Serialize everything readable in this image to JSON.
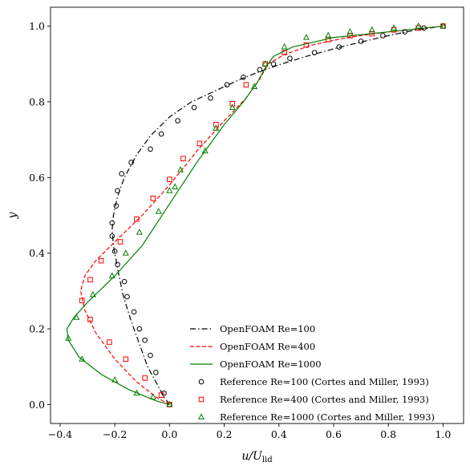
{
  "chart_data": {
    "type": "line",
    "title": "",
    "xlabel": {
      "main": "u/U",
      "sub": "lid"
    },
    "ylabel": "y",
    "xlim": [
      -0.435,
      1.075
    ],
    "ylim": [
      -0.05,
      1.05
    ],
    "xticks": [
      -0.4,
      -0.2,
      0.0,
      0.2,
      0.4,
      0.6,
      0.8,
      1.0
    ],
    "xtick_labels": [
      "−0.4",
      "−0.2",
      "0.0",
      "0.2",
      "0.4",
      "0.6",
      "0.8",
      "1.0"
    ],
    "yticks": [
      0.0,
      0.2,
      0.4,
      0.6,
      0.8,
      1.0
    ],
    "ytick_labels": [
      "0.0",
      "0.2",
      "0.4",
      "0.6",
      "0.8",
      "1.0"
    ],
    "grid": false,
    "legend_position": "lower-right",
    "series": [
      {
        "name": "OpenFOAM Re=100",
        "kind": "line",
        "color": "#000000",
        "dash": "7 3 1.5 3",
        "points": [
          [
            0,
            0
          ],
          [
            -0.02,
            0.02
          ],
          [
            -0.05,
            0.06
          ],
          [
            -0.08,
            0.1
          ],
          [
            -0.11,
            0.16
          ],
          [
            -0.14,
            0.22
          ],
          [
            -0.17,
            0.29
          ],
          [
            -0.19,
            0.36
          ],
          [
            -0.205,
            0.42
          ],
          [
            -0.21,
            0.46
          ],
          [
            -0.205,
            0.5
          ],
          [
            -0.19,
            0.55
          ],
          [
            -0.165,
            0.6
          ],
          [
            -0.12,
            0.66
          ],
          [
            -0.07,
            0.71
          ],
          [
            0,
            0.76
          ],
          [
            0.08,
            0.8
          ],
          [
            0.17,
            0.83
          ],
          [
            0.26,
            0.86
          ],
          [
            0.33,
            0.88
          ],
          [
            0.4,
            0.898
          ],
          [
            0.5,
            0.92
          ],
          [
            0.6,
            0.94
          ],
          [
            0.7,
            0.958
          ],
          [
            0.8,
            0.975
          ],
          [
            0.9,
            0.99
          ],
          [
            1.0,
            1.0
          ]
        ]
      },
      {
        "name": "OpenFOAM Re=400",
        "kind": "line",
        "color": "#ff0000",
        "dash": "5 2.5",
        "points": [
          [
            0,
            0
          ],
          [
            -0.05,
            0.02
          ],
          [
            -0.12,
            0.06
          ],
          [
            -0.2,
            0.12
          ],
          [
            -0.27,
            0.19
          ],
          [
            -0.31,
            0.25
          ],
          [
            -0.325,
            0.3
          ],
          [
            -0.31,
            0.34
          ],
          [
            -0.27,
            0.38
          ],
          [
            -0.2,
            0.43
          ],
          [
            -0.1,
            0.5
          ],
          [
            0,
            0.58
          ],
          [
            0.1,
            0.67
          ],
          [
            0.2,
            0.75
          ],
          [
            0.28,
            0.81
          ],
          [
            0.33,
            0.86
          ],
          [
            0.36,
            0.9
          ],
          [
            0.42,
            0.925
          ],
          [
            0.52,
            0.95
          ],
          [
            0.65,
            0.97
          ],
          [
            0.8,
            0.985
          ],
          [
            1.0,
            1.0
          ]
        ]
      },
      {
        "name": "OpenFOAM Re=1000",
        "kind": "line",
        "color": "#008000",
        "dash": "",
        "points": [
          [
            0,
            0
          ],
          [
            -0.05,
            0.01
          ],
          [
            -0.15,
            0.04
          ],
          [
            -0.25,
            0.08
          ],
          [
            -0.33,
            0.125
          ],
          [
            -0.37,
            0.17
          ],
          [
            -0.375,
            0.2
          ],
          [
            -0.35,
            0.23
          ],
          [
            -0.3,
            0.27
          ],
          [
            -0.2,
            0.34
          ],
          [
            -0.1,
            0.42
          ],
          [
            0,
            0.53
          ],
          [
            0.1,
            0.64
          ],
          [
            0.2,
            0.74
          ],
          [
            0.27,
            0.8
          ],
          [
            0.32,
            0.85
          ],
          [
            0.35,
            0.89
          ],
          [
            0.38,
            0.92
          ],
          [
            0.45,
            0.945
          ],
          [
            0.6,
            0.97
          ],
          [
            0.8,
            0.985
          ],
          [
            1.0,
            1.0
          ]
        ]
      },
      {
        "name": "Reference Re=100 (Cortes and Miller, 1993)",
        "kind": "marker",
        "marker": "circle",
        "color": "#000000",
        "points": [
          [
            0.0,
            0.0
          ],
          [
            -0.02,
            0.03
          ],
          [
            -0.05,
            0.085
          ],
          [
            -0.07,
            0.13
          ],
          [
            -0.09,
            0.17
          ],
          [
            -0.11,
            0.2
          ],
          [
            -0.13,
            0.245
          ],
          [
            -0.155,
            0.285
          ],
          [
            -0.165,
            0.325
          ],
          [
            -0.19,
            0.37
          ],
          [
            -0.2,
            0.405
          ],
          [
            -0.21,
            0.445
          ],
          [
            -0.21,
            0.48
          ],
          [
            -0.195,
            0.525
          ],
          [
            -0.19,
            0.565
          ],
          [
            -0.175,
            0.61
          ],
          [
            -0.14,
            0.64
          ],
          [
            -0.07,
            0.675
          ],
          [
            -0.03,
            0.715
          ],
          [
            0.03,
            0.75
          ],
          [
            0.09,
            0.785
          ],
          [
            0.15,
            0.81
          ],
          [
            0.21,
            0.845
          ],
          [
            0.27,
            0.865
          ],
          [
            0.33,
            0.885
          ],
          [
            0.38,
            0.9
          ],
          [
            0.44,
            0.915
          ],
          [
            0.53,
            0.93
          ],
          [
            0.62,
            0.945
          ],
          [
            0.7,
            0.96
          ],
          [
            0.78,
            0.975
          ],
          [
            0.86,
            0.985
          ],
          [
            0.93,
            0.995
          ],
          [
            1.0,
            1.0
          ]
        ]
      },
      {
        "name": "Reference Re=400 (Cortes and Miller, 1993)",
        "kind": "marker",
        "marker": "square",
        "color": "#ff0000",
        "points": [
          [
            0.0,
            0.0
          ],
          [
            -0.03,
            0.025
          ],
          [
            -0.09,
            0.07
          ],
          [
            -0.16,
            0.12
          ],
          [
            -0.22,
            0.165
          ],
          [
            -0.29,
            0.225
          ],
          [
            -0.32,
            0.275
          ],
          [
            -0.29,
            0.33
          ],
          [
            -0.25,
            0.38
          ],
          [
            -0.18,
            0.43
          ],
          [
            -0.12,
            0.49
          ],
          [
            -0.06,
            0.545
          ],
          [
            -0.0,
            0.595
          ],
          [
            0.05,
            0.65
          ],
          [
            0.11,
            0.69
          ],
          [
            0.17,
            0.74
          ],
          [
            0.23,
            0.795
          ],
          [
            0.28,
            0.845
          ],
          [
            0.35,
            0.9
          ],
          [
            0.42,
            0.93
          ],
          [
            0.5,
            0.95
          ],
          [
            0.58,
            0.965
          ],
          [
            0.66,
            0.975
          ],
          [
            0.74,
            0.98
          ],
          [
            0.82,
            0.99
          ],
          [
            0.91,
            0.995
          ],
          [
            1.0,
            1.0
          ]
        ]
      },
      {
        "name": "Reference Re=1000 (Cortes and Miller, 1993)",
        "kind": "marker",
        "marker": "triangle",
        "color": "#008000",
        "points": [
          [
            0.0,
            0.0
          ],
          [
            -0.06,
            0.02
          ],
          [
            -0.12,
            0.03
          ],
          [
            -0.2,
            0.065
          ],
          [
            -0.32,
            0.12
          ],
          [
            -0.37,
            0.175
          ],
          [
            -0.34,
            0.23
          ],
          [
            -0.28,
            0.29
          ],
          [
            -0.21,
            0.34
          ],
          [
            -0.16,
            0.4
          ],
          [
            -0.11,
            0.455
          ],
          [
            -0.04,
            0.51
          ],
          [
            -0.0,
            0.565
          ],
          [
            0.02,
            0.575
          ],
          [
            0.04,
            0.62
          ],
          [
            0.13,
            0.67
          ],
          [
            0.17,
            0.73
          ],
          [
            0.23,
            0.785
          ],
          [
            0.31,
            0.84
          ],
          [
            0.35,
            0.9
          ],
          [
            0.42,
            0.945
          ],
          [
            0.5,
            0.97
          ],
          [
            0.58,
            0.975
          ],
          [
            0.66,
            0.985
          ],
          [
            0.74,
            0.99
          ],
          [
            0.82,
            0.995
          ],
          [
            0.91,
            1.0
          ],
          [
            1.0,
            1.0
          ]
        ]
      }
    ]
  }
}
